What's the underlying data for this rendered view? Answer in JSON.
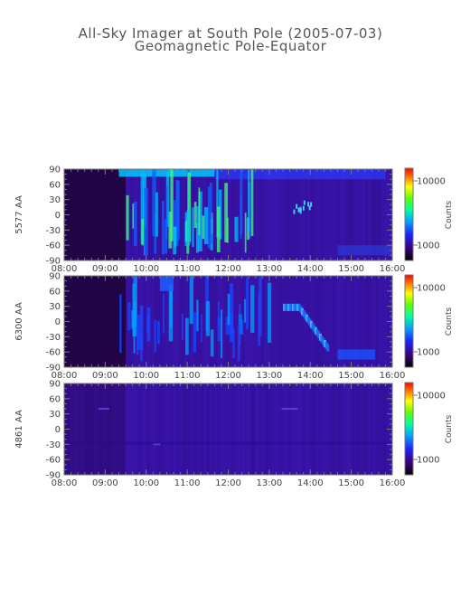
{
  "title": "All-Sky Imager at South Pole (2005-07-03)",
  "subtitle": "Geomagnetic Pole-Equator",
  "chart_data": [
    {
      "type": "heatmap",
      "ylabel": "5577 AA",
      "x_ticks": [
        "08:00",
        "09:00",
        "10:00",
        "11:00",
        "12:00",
        "13:00",
        "14:00",
        "15:00",
        "16:00"
      ],
      "y_ticks": [
        "90",
        "60",
        "30",
        "0",
        "-30",
        "-60",
        "-90"
      ],
      "xlim": [
        "08:00",
        "16:00"
      ],
      "ylim": [
        -90,
        90
      ],
      "colorbar": {
        "label": "Counts",
        "ticks": [
          "10000",
          "1000"
        ],
        "scale": "log"
      }
    },
    {
      "type": "heatmap",
      "ylabel": "6300 AA",
      "x_ticks": [
        "08:00",
        "09:00",
        "10:00",
        "11:00",
        "12:00",
        "13:00",
        "14:00",
        "15:00",
        "16:00"
      ],
      "y_ticks": [
        "90",
        "60",
        "30",
        "0",
        "-30",
        "-60",
        "-90"
      ],
      "xlim": [
        "08:00",
        "16:00"
      ],
      "ylim": [
        -90,
        90
      ],
      "colorbar": {
        "label": "Counts",
        "ticks": [
          "10000",
          "1000"
        ],
        "scale": "log"
      }
    },
    {
      "type": "heatmap",
      "ylabel": "4861 AA",
      "x_ticks": [
        "08:00",
        "09:00",
        "10:00",
        "11:00",
        "12:00",
        "13:00",
        "14:00",
        "15:00",
        "16:00"
      ],
      "y_ticks": [
        "90",
        "60",
        "30",
        "0",
        "-30",
        "-60",
        "-90"
      ],
      "xlim": [
        "08:00",
        "16:00"
      ],
      "ylim": [
        -90,
        90
      ],
      "colorbar": {
        "label": "Counts",
        "ticks": [
          "10000",
          "1000"
        ],
        "scale": "log"
      }
    }
  ]
}
